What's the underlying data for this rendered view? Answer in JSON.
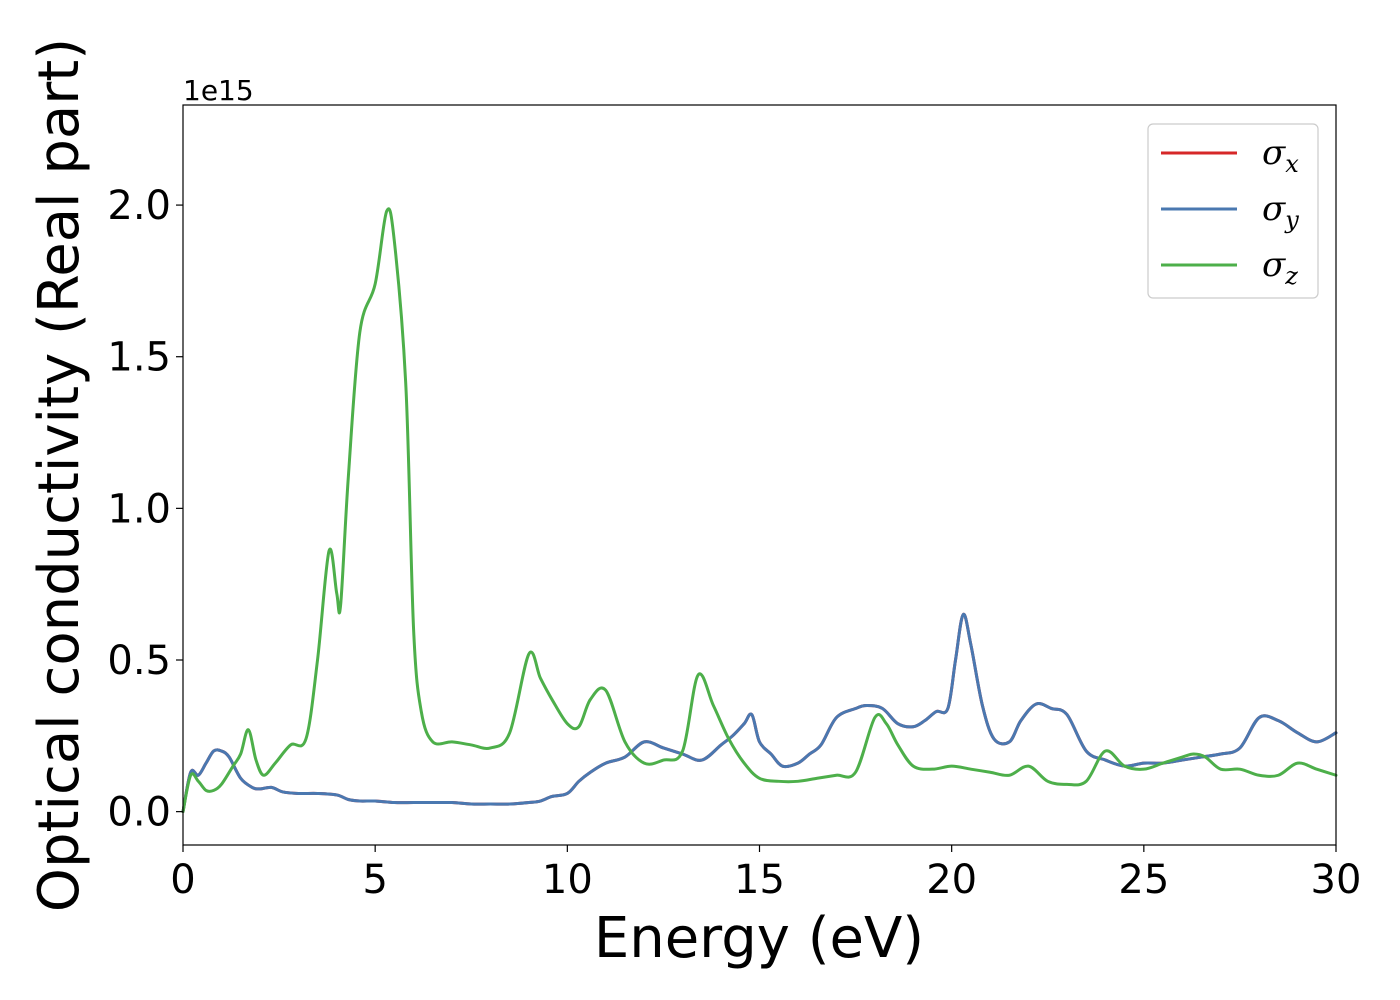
{
  "chart_data": {
    "type": "line",
    "xlabel": "Energy (eV)",
    "ylabel": "Optical conductivity (Real part)",
    "y_offset_label": "1e15",
    "y_scale": 1000000000000000.0,
    "xlim": [
      0,
      30
    ],
    "ylim": [
      -0.11,
      2.33
    ],
    "xticks": [
      0,
      5,
      10,
      15,
      20,
      25,
      30
    ],
    "yticks": [
      0.0,
      0.5,
      1.0,
      1.5,
      2.0
    ],
    "xtick_labels": [
      "0",
      "5",
      "10",
      "15",
      "20",
      "25",
      "30"
    ],
    "ytick_labels": [
      "0.0",
      "0.5",
      "1.0",
      "1.5",
      "2.0"
    ],
    "grid": false,
    "legend_position": "top-right",
    "series": [
      {
        "name": "σx",
        "symbol": "σ",
        "subscript": "x",
        "color": "#d62728",
        "x": [
          0,
          0.2,
          0.4,
          0.6,
          0.8,
          1.0,
          1.2,
          1.5,
          1.8,
          2.0,
          2.3,
          2.6,
          3.0,
          3.5,
          4.0,
          4.3,
          4.6,
          5.0,
          5.5,
          6.0,
          6.5,
          7.0,
          7.5,
          8.0,
          8.5,
          9.0,
          9.3,
          9.6,
          10.0,
          10.3,
          10.6,
          11.0,
          11.5,
          12.0,
          12.5,
          13.0,
          13.5,
          14.0,
          14.3,
          14.6,
          14.8,
          15.0,
          15.3,
          15.6,
          16.0,
          16.3,
          16.6,
          17.0,
          17.5,
          17.8,
          18.2,
          18.6,
          19.0,
          19.3,
          19.6,
          19.9,
          20.1,
          20.3,
          20.5,
          20.8,
          21.1,
          21.5,
          21.8,
          22.2,
          22.6,
          23.0,
          23.5,
          24.0,
          24.5,
          25.0,
          25.5,
          26.0,
          26.5,
          27.0,
          27.5,
          28.0,
          28.5,
          29.0,
          29.5,
          30.0
        ],
        "y": [
          0.0,
          0.13,
          0.12,
          0.16,
          0.2,
          0.2,
          0.18,
          0.11,
          0.08,
          0.075,
          0.08,
          0.065,
          0.06,
          0.06,
          0.055,
          0.04,
          0.035,
          0.035,
          0.03,
          0.03,
          0.03,
          0.03,
          0.025,
          0.025,
          0.025,
          0.03,
          0.035,
          0.05,
          0.06,
          0.1,
          0.13,
          0.16,
          0.18,
          0.23,
          0.21,
          0.19,
          0.17,
          0.22,
          0.25,
          0.29,
          0.32,
          0.23,
          0.19,
          0.15,
          0.16,
          0.19,
          0.22,
          0.31,
          0.34,
          0.35,
          0.34,
          0.29,
          0.28,
          0.3,
          0.33,
          0.34,
          0.5,
          0.65,
          0.55,
          0.35,
          0.24,
          0.23,
          0.3,
          0.355,
          0.34,
          0.32,
          0.2,
          0.17,
          0.15,
          0.16,
          0.16,
          0.17,
          0.18,
          0.19,
          0.21,
          0.31,
          0.3,
          0.26,
          0.23,
          0.26
        ]
      },
      {
        "name": "σy",
        "symbol": "σ",
        "subscript": "y",
        "color": "#4a78b0",
        "x": [
          0,
          0.2,
          0.4,
          0.6,
          0.8,
          1.0,
          1.2,
          1.5,
          1.8,
          2.0,
          2.3,
          2.6,
          3.0,
          3.5,
          4.0,
          4.3,
          4.6,
          5.0,
          5.5,
          6.0,
          6.5,
          7.0,
          7.5,
          8.0,
          8.5,
          9.0,
          9.3,
          9.6,
          10.0,
          10.3,
          10.6,
          11.0,
          11.5,
          12.0,
          12.5,
          13.0,
          13.5,
          14.0,
          14.3,
          14.6,
          14.8,
          15.0,
          15.3,
          15.6,
          16.0,
          16.3,
          16.6,
          17.0,
          17.5,
          17.8,
          18.2,
          18.6,
          19.0,
          19.3,
          19.6,
          19.9,
          20.1,
          20.3,
          20.5,
          20.8,
          21.1,
          21.5,
          21.8,
          22.2,
          22.6,
          23.0,
          23.5,
          24.0,
          24.5,
          25.0,
          25.5,
          26.0,
          26.5,
          27.0,
          27.5,
          28.0,
          28.5,
          29.0,
          29.5,
          30.0
        ],
        "y": [
          0.0,
          0.13,
          0.12,
          0.16,
          0.2,
          0.2,
          0.18,
          0.11,
          0.08,
          0.075,
          0.08,
          0.065,
          0.06,
          0.06,
          0.055,
          0.04,
          0.035,
          0.035,
          0.03,
          0.03,
          0.03,
          0.03,
          0.025,
          0.025,
          0.025,
          0.03,
          0.035,
          0.05,
          0.06,
          0.1,
          0.13,
          0.16,
          0.18,
          0.23,
          0.21,
          0.19,
          0.17,
          0.22,
          0.25,
          0.29,
          0.32,
          0.23,
          0.19,
          0.15,
          0.16,
          0.19,
          0.22,
          0.31,
          0.34,
          0.35,
          0.34,
          0.29,
          0.28,
          0.3,
          0.33,
          0.34,
          0.5,
          0.65,
          0.55,
          0.35,
          0.24,
          0.23,
          0.3,
          0.355,
          0.34,
          0.32,
          0.2,
          0.17,
          0.15,
          0.16,
          0.16,
          0.17,
          0.18,
          0.19,
          0.21,
          0.31,
          0.3,
          0.26,
          0.23,
          0.26
        ]
      },
      {
        "name": "σz",
        "symbol": "σ",
        "subscript": "z",
        "color": "#4daf4a",
        "x": [
          0,
          0.2,
          0.4,
          0.6,
          0.8,
          1.0,
          1.3,
          1.5,
          1.7,
          1.9,
          2.1,
          2.4,
          2.8,
          3.2,
          3.5,
          3.8,
          4.0,
          4.1,
          4.3,
          4.6,
          5.0,
          5.3,
          5.5,
          5.8,
          6.0,
          6.2,
          6.5,
          7.0,
          7.5,
          8.0,
          8.5,
          9.0,
          9.3,
          9.6,
          10.0,
          10.3,
          10.6,
          11.0,
          11.5,
          12.0,
          12.5,
          13.0,
          13.4,
          13.8,
          14.2,
          14.6,
          15.0,
          15.5,
          16.0,
          16.5,
          17.0,
          17.5,
          18.0,
          18.3,
          18.6,
          19.0,
          19.5,
          20.0,
          20.5,
          21.0,
          21.5,
          22.0,
          22.5,
          23.0,
          23.5,
          24.0,
          24.5,
          25.0,
          25.5,
          26.0,
          26.3,
          26.6,
          27.0,
          27.5,
          28.0,
          28.5,
          29.0,
          29.5,
          30.0
        ],
        "y": [
          0.0,
          0.12,
          0.1,
          0.07,
          0.07,
          0.09,
          0.15,
          0.19,
          0.27,
          0.17,
          0.12,
          0.16,
          0.22,
          0.24,
          0.5,
          0.86,
          0.72,
          0.68,
          1.1,
          1.58,
          1.74,
          1.98,
          1.88,
          1.4,
          0.6,
          0.33,
          0.23,
          0.23,
          0.22,
          0.21,
          0.26,
          0.52,
          0.44,
          0.37,
          0.29,
          0.28,
          0.37,
          0.4,
          0.23,
          0.16,
          0.17,
          0.2,
          0.45,
          0.35,
          0.24,
          0.16,
          0.11,
          0.1,
          0.1,
          0.11,
          0.12,
          0.13,
          0.31,
          0.29,
          0.22,
          0.15,
          0.14,
          0.15,
          0.14,
          0.13,
          0.12,
          0.15,
          0.1,
          0.09,
          0.1,
          0.2,
          0.15,
          0.14,
          0.16,
          0.18,
          0.19,
          0.18,
          0.14,
          0.14,
          0.12,
          0.12,
          0.16,
          0.14,
          0.12
        ]
      }
    ]
  }
}
